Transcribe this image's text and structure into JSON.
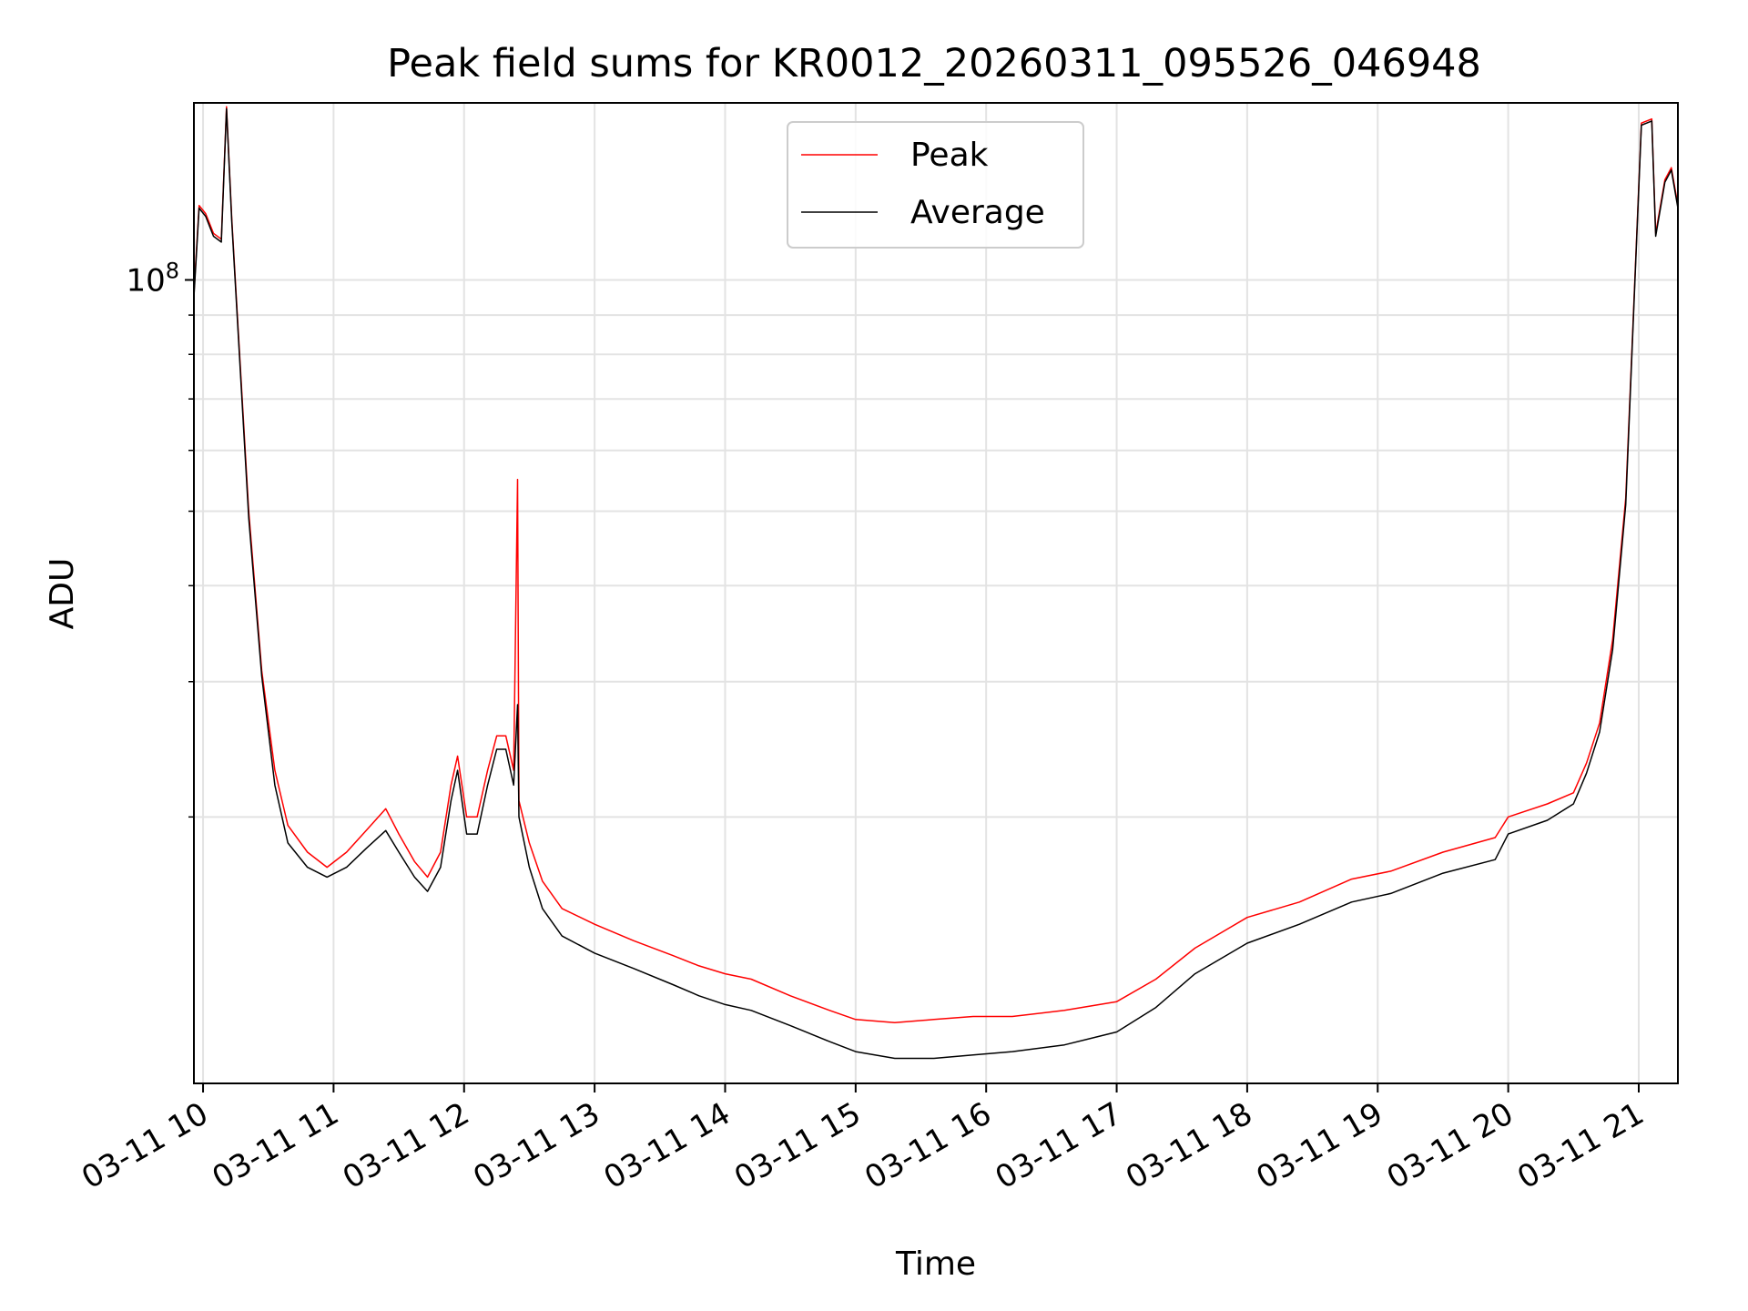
{
  "chart_data": {
    "type": "line",
    "title": "Peak field sums for KR0012_20260311_095526_046948",
    "xlabel": "Time",
    "ylabel": "ADU",
    "yscale": "log",
    "xlim_hours": [
      9.93,
      21.3
    ],
    "ylim": [
      9000000,
      170000000
    ],
    "grid": true,
    "legend_position": "upper center",
    "x_ticks": [
      {
        "hour": 10,
        "label": "03-11 10"
      },
      {
        "hour": 11,
        "label": "03-11 11"
      },
      {
        "hour": 12,
        "label": "03-11 12"
      },
      {
        "hour": 13,
        "label": "03-11 13"
      },
      {
        "hour": 14,
        "label": "03-11 14"
      },
      {
        "hour": 15,
        "label": "03-11 15"
      },
      {
        "hour": 16,
        "label": "03-11 16"
      },
      {
        "hour": 17,
        "label": "03-11 17"
      },
      {
        "hour": 18,
        "label": "03-11 18"
      },
      {
        "hour": 19,
        "label": "03-11 19"
      },
      {
        "hour": 20,
        "label": "03-11 20"
      },
      {
        "hour": 21,
        "label": "03-11 21"
      }
    ],
    "y_major_ticks": [
      {
        "value": 100000000,
        "base": "10",
        "exponent": "8"
      }
    ],
    "y_minor_ticks": [
      20000000,
      30000000,
      40000000,
      50000000,
      60000000,
      70000000,
      80000000,
      90000000
    ],
    "series": [
      {
        "name": "Peak",
        "color": "#ff0000",
        "points": [
          [
            9.93,
            96000000
          ],
          [
            9.97,
            125000000
          ],
          [
            10.02,
            122000000
          ],
          [
            10.08,
            115000000
          ],
          [
            10.14,
            113000000
          ],
          [
            10.18,
            168000000
          ],
          [
            10.22,
            120000000
          ],
          [
            10.28,
            80000000
          ],
          [
            10.35,
            50000000
          ],
          [
            10.45,
            31000000
          ],
          [
            10.55,
            23000000
          ],
          [
            10.65,
            19500000
          ],
          [
            10.8,
            18000000
          ],
          [
            10.95,
            17200000
          ],
          [
            11.1,
            18000000
          ],
          [
            11.25,
            19200000
          ],
          [
            11.4,
            20500000
          ],
          [
            11.5,
            19000000
          ],
          [
            11.62,
            17500000
          ],
          [
            11.72,
            16700000
          ],
          [
            11.82,
            18000000
          ],
          [
            11.9,
            22000000
          ],
          [
            11.95,
            24000000
          ],
          [
            12.02,
            20000000
          ],
          [
            12.1,
            20000000
          ],
          [
            12.18,
            23000000
          ],
          [
            12.25,
            25500000
          ],
          [
            12.32,
            25500000
          ],
          [
            12.38,
            23000000
          ],
          [
            12.41,
            55000000
          ],
          [
            12.42,
            21000000
          ],
          [
            12.5,
            18500000
          ],
          [
            12.6,
            16500000
          ],
          [
            12.75,
            15200000
          ],
          [
            13.0,
            14500000
          ],
          [
            13.3,
            13800000
          ],
          [
            13.6,
            13200000
          ],
          [
            13.8,
            12800000
          ],
          [
            14.0,
            12500000
          ],
          [
            14.2,
            12300000
          ],
          [
            14.5,
            11700000
          ],
          [
            14.8,
            11200000
          ],
          [
            15.0,
            10900000
          ],
          [
            15.3,
            10800000
          ],
          [
            15.6,
            10900000
          ],
          [
            15.9,
            11000000
          ],
          [
            16.2,
            11000000
          ],
          [
            16.6,
            11200000
          ],
          [
            17.0,
            11500000
          ],
          [
            17.3,
            12300000
          ],
          [
            17.6,
            13500000
          ],
          [
            18.0,
            14800000
          ],
          [
            18.4,
            15500000
          ],
          [
            18.8,
            16600000
          ],
          [
            19.1,
            17000000
          ],
          [
            19.5,
            18000000
          ],
          [
            19.9,
            18800000
          ],
          [
            20.0,
            20000000
          ],
          [
            20.3,
            20800000
          ],
          [
            20.5,
            21500000
          ],
          [
            20.6,
            23500000
          ],
          [
            20.7,
            26500000
          ],
          [
            20.8,
            34000000
          ],
          [
            20.9,
            52000000
          ],
          [
            20.97,
            100000000
          ],
          [
            21.02,
            160000000
          ],
          [
            21.1,
            162000000
          ],
          [
            21.13,
            115000000
          ],
          [
            21.2,
            135000000
          ],
          [
            21.25,
            140000000
          ],
          [
            21.3,
            125000000
          ]
        ]
      },
      {
        "name": "Average",
        "color": "#000000",
        "points": [
          [
            9.93,
            95000000
          ],
          [
            9.97,
            124000000
          ],
          [
            10.02,
            121000000
          ],
          [
            10.08,
            114000000
          ],
          [
            10.14,
            112000000
          ],
          [
            10.18,
            167000000
          ],
          [
            10.22,
            119000000
          ],
          [
            10.28,
            79000000
          ],
          [
            10.35,
            49000000
          ],
          [
            10.45,
            30500000
          ],
          [
            10.55,
            22000000
          ],
          [
            10.65,
            18500000
          ],
          [
            10.8,
            17200000
          ],
          [
            10.95,
            16700000
          ],
          [
            11.1,
            17200000
          ],
          [
            11.25,
            18200000
          ],
          [
            11.4,
            19200000
          ],
          [
            11.5,
            18000000
          ],
          [
            11.62,
            16700000
          ],
          [
            11.72,
            16000000
          ],
          [
            11.82,
            17200000
          ],
          [
            11.9,
            21000000
          ],
          [
            11.95,
            23000000
          ],
          [
            12.02,
            19000000
          ],
          [
            12.1,
            19000000
          ],
          [
            12.18,
            22000000
          ],
          [
            12.25,
            24500000
          ],
          [
            12.32,
            24500000
          ],
          [
            12.38,
            22000000
          ],
          [
            12.41,
            28000000
          ],
          [
            12.42,
            20000000
          ],
          [
            12.5,
            17200000
          ],
          [
            12.6,
            15200000
          ],
          [
            12.75,
            14000000
          ],
          [
            13.0,
            13300000
          ],
          [
            13.3,
            12700000
          ],
          [
            13.6,
            12100000
          ],
          [
            13.8,
            11700000
          ],
          [
            14.0,
            11400000
          ],
          [
            14.2,
            11200000
          ],
          [
            14.5,
            10700000
          ],
          [
            14.8,
            10200000
          ],
          [
            15.0,
            9900000
          ],
          [
            15.3,
            9700000
          ],
          [
            15.6,
            9700000
          ],
          [
            15.9,
            9800000
          ],
          [
            16.2,
            9900000
          ],
          [
            16.6,
            10100000
          ],
          [
            17.0,
            10500000
          ],
          [
            17.3,
            11300000
          ],
          [
            17.6,
            12500000
          ],
          [
            18.0,
            13700000
          ],
          [
            18.4,
            14500000
          ],
          [
            18.8,
            15500000
          ],
          [
            19.1,
            15900000
          ],
          [
            19.5,
            16900000
          ],
          [
            19.9,
            17600000
          ],
          [
            20.0,
            19000000
          ],
          [
            20.3,
            19800000
          ],
          [
            20.5,
            20800000
          ],
          [
            20.6,
            22800000
          ],
          [
            20.7,
            25800000
          ],
          [
            20.8,
            33000000
          ],
          [
            20.9,
            51000000
          ],
          [
            20.97,
            99000000
          ],
          [
            21.02,
            159000000
          ],
          [
            21.1,
            161000000
          ],
          [
            21.13,
            114000000
          ],
          [
            21.2,
            134000000
          ],
          [
            21.25,
            139000000
          ],
          [
            21.3,
            124000000
          ]
        ]
      }
    ]
  }
}
